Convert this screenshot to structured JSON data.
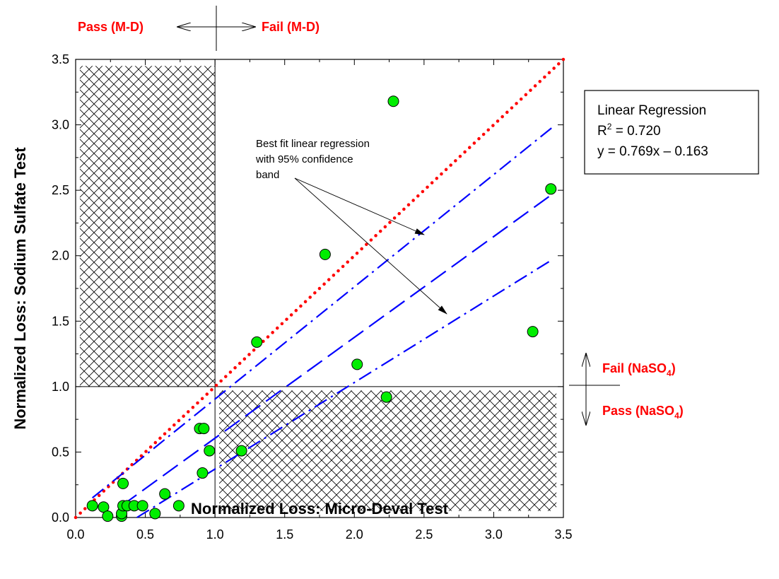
{
  "chart_data": {
    "type": "scatter",
    "xlabel": "Normalized Loss: Micro-Deval Test",
    "ylabel": "Normalized Loss: Sodium Sulfate Test",
    "xlim": [
      0,
      3.5
    ],
    "ylim": [
      0,
      3.5
    ],
    "x_ticks": [
      "0.0",
      "0.5",
      "1.0",
      "1.5",
      "2.0",
      "2.5",
      "3.0",
      "3.5"
    ],
    "y_ticks": [
      "0.0",
      "0.5",
      "1.0",
      "1.5",
      "2.0",
      "2.5",
      "3.0",
      "3.5"
    ],
    "grid": false,
    "points": [
      {
        "x": 0.12,
        "y": 0.09
      },
      {
        "x": 0.2,
        "y": 0.08
      },
      {
        "x": 0.23,
        "y": 0.01
      },
      {
        "x": 0.33,
        "y": 0.01
      },
      {
        "x": 0.33,
        "y": 0.03
      },
      {
        "x": 0.34,
        "y": 0.26
      },
      {
        "x": 0.34,
        "y": 0.09
      },
      {
        "x": 0.37,
        "y": 0.09
      },
      {
        "x": 0.42,
        "y": 0.09
      },
      {
        "x": 0.48,
        "y": 0.09
      },
      {
        "x": 0.57,
        "y": 0.03
      },
      {
        "x": 0.64,
        "y": 0.18
      },
      {
        "x": 0.74,
        "y": 0.09
      },
      {
        "x": 0.89,
        "y": 0.68
      },
      {
        "x": 0.92,
        "y": 0.68
      },
      {
        "x": 0.91,
        "y": 0.34
      },
      {
        "x": 0.96,
        "y": 0.51
      },
      {
        "x": 1.19,
        "y": 0.51
      },
      {
        "x": 1.3,
        "y": 1.34
      },
      {
        "x": 1.79,
        "y": 2.01
      },
      {
        "x": 2.02,
        "y": 1.17
      },
      {
        "x": 2.23,
        "y": 0.92
      },
      {
        "x": 2.28,
        "y": 3.18
      },
      {
        "x": 3.28,
        "y": 1.42
      },
      {
        "x": 3.41,
        "y": 2.51
      }
    ],
    "equality_line": {
      "x": [
        0,
        3.5
      ],
      "y": [
        0,
        3.5
      ],
      "color": "#ff0000",
      "style": "dotted"
    },
    "regression_line": {
      "x": [
        0.33,
        3.42
      ],
      "y": [
        0.09,
        2.47
      ],
      "color": "#0000ff",
      "style": "dashed"
    },
    "confidence_upper": {
      "x": [
        0.12,
        3.42
      ],
      "y": [
        0.15,
        2.98
      ],
      "color": "#0000ff",
      "style": "dashdot"
    },
    "confidence_lower": {
      "x": [
        0.44,
        3.42
      ],
      "y": [
        0.0,
        1.97
      ],
      "color": "#0000ff",
      "style": "dashdot"
    },
    "threshold_x": 1.0,
    "threshold_y": 1.0,
    "hatched_regions": [
      {
        "x": [
          0.03,
          1.0
        ],
        "y": [
          1.0,
          3.45
        ]
      },
      {
        "x": [
          1.03,
          3.45
        ],
        "y": [
          0.05,
          0.97
        ]
      }
    ],
    "point_color": "#00ee00"
  },
  "labels": {
    "pass_md": "Pass (M-D)",
    "fail_md": "Fail (M-D)",
    "fail_naso4_main": "Fail (NaSO",
    "pass_naso4_main": "Pass (NaSO",
    "naso4_sub": "4",
    "close_paren": ")"
  },
  "annotation": {
    "line1": "Best fit linear regression",
    "line2": "with 95% confidence",
    "line3": "band"
  },
  "regression_box": {
    "title": "Linear Regression",
    "r2_label": "R",
    "r2_sup": "2",
    "r2_value": " = 0.720",
    "equation": "y = 0.769x – 0.163"
  },
  "colors": {
    "points": "#00ee00",
    "equality": "#ff0000",
    "regression": "#0000ff",
    "labels": "#ff0000"
  }
}
